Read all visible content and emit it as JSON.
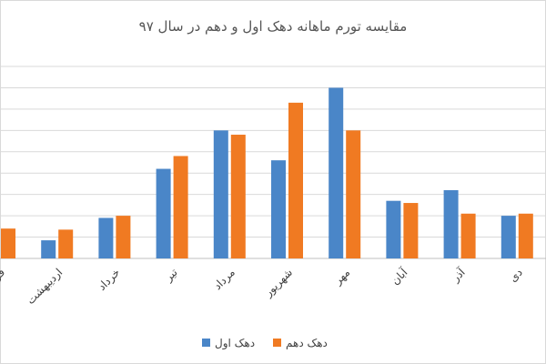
{
  "chart_data": {
    "type": "bar",
    "title": "مقایسه تورم ماهانه دهک اول و دهم در سال ۹۷",
    "categories": [
      "فروردین",
      "اردیبهشت",
      "خرداد",
      "تیر",
      "مرداد",
      "شهریور",
      "مهر",
      "آبان",
      "آذر",
      "دی"
    ],
    "series": [
      {
        "name": "دهک اول",
        "color": "#4a86c8",
        "values": [
          1.4,
          0.85,
          1.9,
          4.2,
          6.0,
          4.6,
          8.0,
          2.7,
          3.2,
          2.0
        ]
      },
      {
        "name": "دهک دهم",
        "color": "#f07a22",
        "values": [
          1.4,
          1.35,
          2.0,
          4.8,
          5.8,
          7.3,
          6.0,
          2.6,
          2.1,
          2.1
        ]
      }
    ],
    "ylim": [
      0,
      9
    ],
    "yticks": [
      0,
      1,
      2,
      3,
      4,
      5,
      6,
      7,
      8,
      9
    ],
    "grid": true,
    "legend": "bottom"
  }
}
